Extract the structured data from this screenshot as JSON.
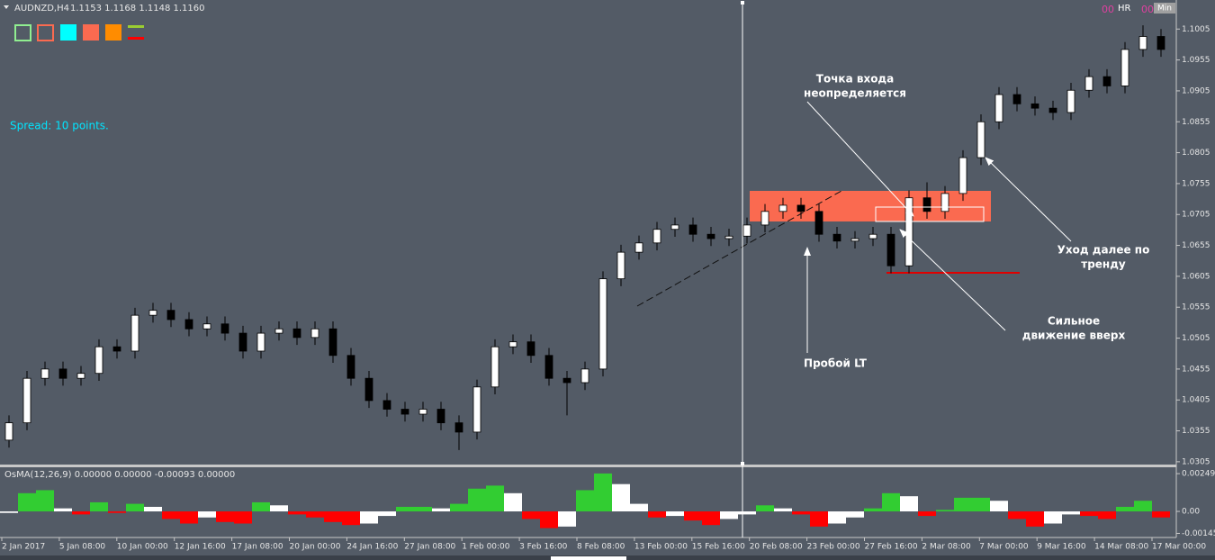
{
  "header": {
    "symbol": "AUDNZD,H4",
    "quote": "1.1153 1.1168 1.1148 1.1160",
    "spread": "Spread: 10 points.",
    "marker_left": "00",
    "marker_right": "00",
    "hr": "HR",
    "min": "Min"
  },
  "annotations": [
    {
      "lines": [
        "Точка входа",
        "неопределяется"
      ]
    },
    {
      "lines": [
        "Уход далее по",
        "тренду"
      ]
    },
    {
      "lines": [
        "Сильное",
        "движение вверх"
      ]
    },
    {
      "lines": [
        "Пробой LT"
      ]
    }
  ],
  "xlabels": [
    "2 Jan 2017",
    "5 Jan 08:00",
    "10 Jan 00:00",
    "12 Jan 16:00",
    "17 Jan 08:00",
    "20 Jan 00:00",
    "24 Jan 16:00",
    "27 Jan 08:00",
    "1 Feb 00:00",
    "3 Feb 16:00",
    "8 Feb 08:00",
    "13 Feb 00:00",
    "15 Feb 16:00",
    "20 Feb 08:00",
    "23 Feb 00:00",
    "27 Feb 16:00",
    "2 Mar 08:00",
    "7 Mar 00:00",
    "9 Mar 16:00",
    "14 Mar 08:00",
    "17 Mar 00:00"
  ],
  "chart_data": [
    {
      "type": "candlestick",
      "up_color": "#ffffff",
      "down_color": "#000000",
      "wick_color": "#000000",
      "ylim": [
        1.0299,
        1.1052
      ],
      "yticks": [
        1.1005,
        1.0955,
        1.0905,
        1.0855,
        1.0805,
        1.0755,
        1.0705,
        1.0655,
        1.0605,
        1.0555,
        1.0505,
        1.0455,
        1.0405,
        1.0355,
        1.0305
      ],
      "open": [
        1.034,
        1.0368,
        1.044,
        1.0455,
        1.044,
        1.0448,
        1.0491,
        1.0484,
        1.0542,
        1.055,
        1.0535,
        1.052,
        1.0528,
        1.0513,
        1.0484,
        1.0513,
        1.052,
        1.0506,
        1.052,
        1.0477,
        1.044,
        1.0404,
        1.039,
        1.0382,
        1.039,
        1.0368,
        1.0353,
        1.0426,
        1.0491,
        1.0499,
        1.0477,
        1.044,
        1.0433,
        1.0455,
        1.0601,
        1.0644,
        1.0659,
        1.0681,
        1.0688,
        1.0673,
        1.0666,
        1.067,
        1.0688,
        1.071,
        1.072,
        1.071,
        1.0673,
        1.0662,
        1.0666,
        1.0673,
        1.0622,
        1.0732,
        1.071,
        1.0739,
        1.0797,
        1.0855,
        1.0899,
        1.0884,
        1.0877,
        1.087,
        1.0906,
        1.0928,
        1.0913,
        1.0972,
        1.0993
      ],
      "high": [
        1.038,
        1.0452,
        1.0467,
        1.0467,
        1.046,
        1.0503,
        1.0503,
        1.0554,
        1.0562,
        1.0562,
        1.0547,
        1.054,
        1.054,
        1.0525,
        1.0525,
        1.0532,
        1.0532,
        1.0532,
        1.0532,
        1.0489,
        1.0452,
        1.0416,
        1.0402,
        1.0402,
        1.0402,
        1.038,
        1.0438,
        1.0503,
        1.0511,
        1.0511,
        1.0489,
        1.0452,
        1.0467,
        1.0613,
        1.0656,
        1.0671,
        1.0693,
        1.07,
        1.07,
        1.0685,
        1.0682,
        1.07,
        1.0722,
        1.0732,
        1.0732,
        1.0722,
        1.0685,
        1.0678,
        1.0685,
        1.0685,
        1.0744,
        1.0757,
        1.0751,
        1.0809,
        1.0867,
        1.0911,
        1.0911,
        1.0896,
        1.0889,
        1.0918,
        1.094,
        1.094,
        1.0984,
        1.1011,
        1.1005
      ],
      "low": [
        1.0328,
        1.0356,
        1.0428,
        1.0428,
        1.0428,
        1.0436,
        1.0472,
        1.0472,
        1.053,
        1.0523,
        1.0508,
        1.0508,
        1.0501,
        1.0472,
        1.0472,
        1.0501,
        1.0494,
        1.0494,
        1.0465,
        1.0428,
        1.0392,
        1.0378,
        1.037,
        1.037,
        1.0356,
        1.0324,
        1.0341,
        1.0414,
        1.0479,
        1.0465,
        1.0428,
        1.038,
        1.0421,
        1.0443,
        1.0589,
        1.0632,
        1.0647,
        1.0669,
        1.0661,
        1.0654,
        1.0654,
        1.0658,
        1.0676,
        1.0698,
        1.0698,
        1.0661,
        1.065,
        1.065,
        1.0654,
        1.061,
        1.061,
        1.0698,
        1.0698,
        1.0727,
        1.0785,
        1.0843,
        1.0872,
        1.0865,
        1.0858,
        1.0858,
        1.0894,
        1.0901,
        1.0901,
        1.096,
        1.096
      ],
      "close": [
        1.0368,
        1.044,
        1.0455,
        1.044,
        1.0448,
        1.0491,
        1.0484,
        1.0542,
        1.055,
        1.0535,
        1.052,
        1.0528,
        1.0513,
        1.0484,
        1.0513,
        1.052,
        1.0506,
        1.052,
        1.0477,
        1.044,
        1.0404,
        1.039,
        1.0382,
        1.039,
        1.0368,
        1.0353,
        1.0426,
        1.0491,
        1.0499,
        1.0477,
        1.044,
        1.0433,
        1.0455,
        1.0601,
        1.0644,
        1.0659,
        1.0681,
        1.0688,
        1.0673,
        1.0666,
        1.067,
        1.0688,
        1.071,
        1.072,
        1.071,
        1.0673,
        1.0662,
        1.0666,
        1.0673,
        1.0622,
        1.0732,
        1.071,
        1.0739,
        1.0797,
        1.0855,
        1.0899,
        1.0884,
        1.0877,
        1.087,
        1.0906,
        1.0928,
        1.0913,
        1.0972,
        1.0993,
        1.0972
      ]
    },
    {
      "type": "bar",
      "title": "OsMA(12,26,9) 0.00000 0.00000 -0.00093 0.00000",
      "rise_color": "#32cd32",
      "fall_color": "#ff0000",
      "neutral_color": "#ffffff",
      "ylim": [
        -0.00172,
        0.00291
      ],
      "yticks": [
        0.00249,
        {
          "value": 0,
          "label": "0.00"
        },
        -0.00145
      ],
      "values": [
        -0.0001,
        0.0012,
        0.0014,
        0.0002,
        -0.0002,
        0.0006,
        -0.0001,
        0.0005,
        0.0003,
        -0.0005,
        -0.0008,
        -0.0004,
        -0.0007,
        -0.0008,
        0.0006,
        0.0004,
        -0.0002,
        -0.0004,
        -0.0007,
        -0.0009,
        -0.0008,
        -0.0003,
        0.0003,
        0.0003,
        0.0002,
        0.0005,
        0.0015,
        0.0017,
        0.0012,
        -0.0005,
        -0.0011,
        -0.001,
        0.0014,
        0.0025,
        0.0018,
        0.0005,
        -0.0004,
        -0.0003,
        -0.0006,
        -0.0009,
        -0.0005,
        -0.0002,
        0.0004,
        0.0002,
        -0.0002,
        -0.001,
        -0.0008,
        -0.0004,
        0.0002,
        0.0012,
        0.001,
        -0.0003,
        0.0001,
        0.0009,
        0.0009,
        0.0007,
        -0.0005,
        -0.001,
        -0.0008,
        -0.0002,
        -0.0003,
        -0.0005,
        0.0003,
        0.0007,
        -0.0004
      ]
    }
  ]
}
